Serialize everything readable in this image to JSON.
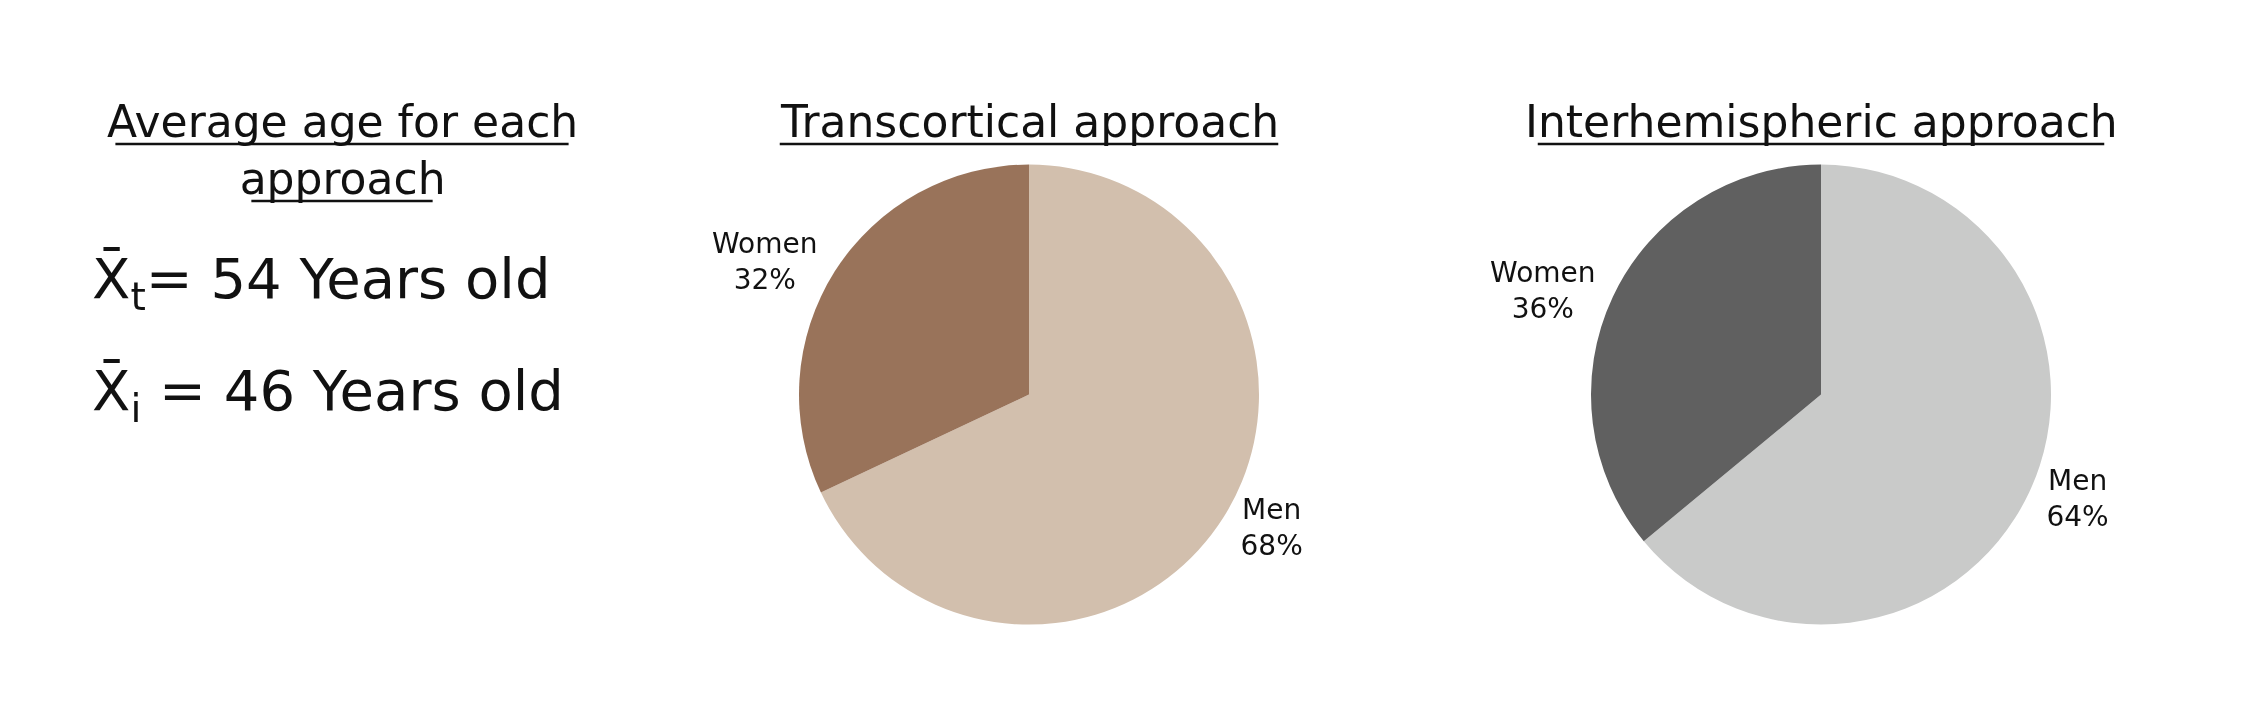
{
  "chart_data": [
    {
      "type": "other",
      "title": "Average age for each approach",
      "annotations": [
        "X̄$_{t}$= 54 Years old",
        "X̄$_{i}$ = 46 Years old"
      ]
    },
    {
      "type": "pie",
      "title": "Transcortical approach",
      "categories": [
        "Men",
        "Women"
      ],
      "values": [
        68,
        32
      ],
      "value_labels": [
        "68%",
        "32%"
      ],
      "colors": [
        "#d2bfad",
        "#99735a"
      ]
    },
    {
      "type": "pie",
      "title": "Interhemispheric approach",
      "categories": [
        "Men",
        "Women"
      ],
      "values": [
        64,
        36
      ],
      "value_labels": [
        "64%",
        "36%"
      ],
      "colors": [
        "#c9cac9",
        "#606060"
      ]
    }
  ]
}
